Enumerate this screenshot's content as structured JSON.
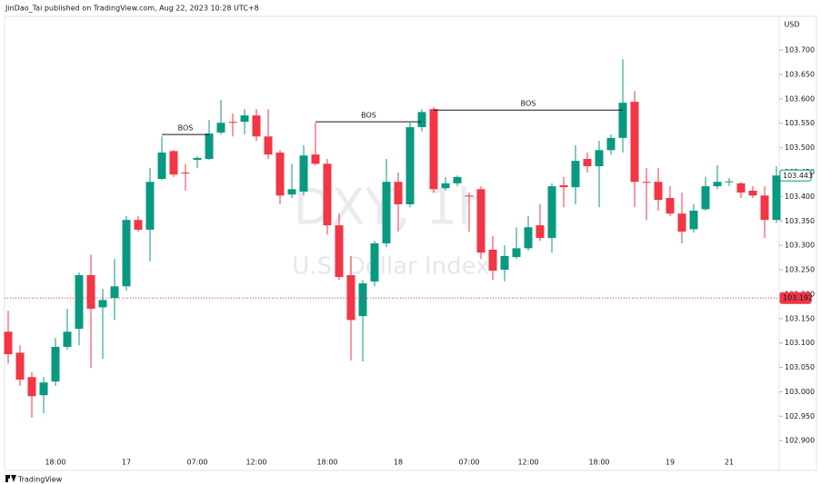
{
  "header": {
    "text": "JinDao_Tai published on TradingView.com, Aug 22, 2023 10:28 UTC+8"
  },
  "footer": {
    "brand": "TradingView"
  },
  "chart_data": {
    "type": "candlestick",
    "currency": "USD",
    "watermark": {
      "symbol": "DXY, 1h",
      "name": "U.S. Dollar Index"
    },
    "up_color": "#089981",
    "down_color": "#f23645",
    "categories": [
      null,
      null,
      null,
      null,
      "18:00",
      null,
      null,
      null,
      null,
      null,
      "17",
      null,
      null,
      null,
      null,
      null,
      "07:00",
      null,
      null,
      null,
      null,
      "12:00",
      null,
      null,
      null,
      null,
      null,
      "18:00",
      null,
      null,
      null,
      null,
      null,
      "18",
      null,
      null,
      null,
      null,
      null,
      "07:00",
      null,
      null,
      null,
      null,
      "12:00",
      null,
      null,
      null,
      null,
      null,
      "18:00",
      null,
      null,
      null,
      null,
      null,
      "19",
      null,
      null,
      null,
      null,
      "21",
      null,
      null,
      null,
      null
    ],
    "open": [
      103.123,
      103.08,
      103.03,
      102.993,
      103.021,
      103.092,
      103.129,
      103.239,
      103.173,
      103.192,
      103.216,
      103.352,
      103.332,
      103.436,
      103.493,
      103.449,
      103.475,
      103.477,
      103.531,
      103.553,
      103.553,
      103.566,
      103.523,
      103.49,
      103.404,
      103.41,
      103.486,
      103.467,
      103.341,
      103.239,
      103.155,
      103.226,
      103.304,
      103.43,
      103.384,
      103.542,
      103.579,
      103.417,
      103.427,
      103.402,
      103.415,
      103.291,
      103.25,
      103.276,
      103.294,
      103.341,
      103.315,
      103.423,
      103.419,
      103.477,
      103.462,
      103.495,
      103.52,
      103.594,
      103.43,
      103.43,
      103.397,
      103.365,
      103.333,
      103.374,
      103.421,
      103.43,
      103.427,
      103.412,
      103.402,
      103.352
    ],
    "high": [
      103.166,
      103.095,
      103.04,
      103.03,
      103.11,
      103.17,
      103.244,
      103.281,
      103.211,
      103.272,
      103.36,
      103.36,
      103.458,
      103.523,
      103.495,
      103.467,
      103.482,
      103.557,
      103.598,
      103.57,
      103.579,
      103.579,
      103.579,
      103.495,
      103.467,
      103.505,
      103.551,
      103.477,
      103.365,
      103.278,
      103.229,
      103.309,
      103.477,
      103.449,
      103.551,
      103.579,
      103.583,
      103.44,
      103.443,
      103.408,
      103.421,
      103.319,
      103.3,
      103.337,
      103.36,
      103.384,
      103.427,
      103.44,
      103.505,
      103.49,
      103.514,
      103.527,
      103.681,
      103.616,
      103.458,
      103.458,
      103.421,
      103.408,
      103.384,
      103.44,
      103.464,
      103.438,
      103.43,
      103.421,
      103.421,
      103.462
    ],
    "low": [
      103.058,
      103.012,
      102.947,
      102.956,
      103.012,
      103.086,
      103.095,
      103.049,
      103.067,
      103.147,
      103.207,
      103.328,
      103.267,
      103.434,
      103.44,
      103.412,
      103.458,
      103.475,
      103.527,
      103.523,
      103.527,
      103.514,
      103.477,
      103.384,
      103.397,
      103.402,
      103.464,
      103.322,
      103.229,
      103.064,
      103.062,
      103.216,
      103.296,
      103.328,
      103.378,
      103.533,
      103.408,
      103.412,
      103.421,
      103.328,
      103.272,
      103.229,
      103.226,
      103.272,
      103.289,
      103.309,
      103.285,
      103.378,
      103.384,
      103.449,
      103.378,
      103.486,
      103.49,
      103.378,
      103.352,
      103.371,
      103.36,
      103.304,
      103.326,
      103.371,
      103.415,
      103.421,
      103.397,
      103.397,
      103.315,
      103.346
    ],
    "close": [
      103.077,
      103.025,
      102.991,
      103.019,
      103.092,
      103.123,
      103.239,
      103.17,
      103.188,
      103.216,
      103.352,
      103.332,
      103.43,
      103.49,
      103.445,
      103.447,
      103.479,
      103.529,
      103.551,
      103.551,
      103.566,
      103.523,
      103.486,
      103.402,
      103.415,
      103.484,
      103.467,
      103.341,
      103.235,
      103.147,
      103.222,
      103.304,
      103.43,
      103.384,
      103.542,
      103.573,
      103.415,
      103.427,
      103.44,
      103.4,
      103.285,
      103.248,
      103.278,
      103.294,
      103.337,
      103.315,
      103.421,
      103.419,
      103.473,
      103.462,
      103.495,
      103.52,
      103.592,
      103.43,
      103.428,
      103.393,
      103.365,
      103.328,
      103.371,
      103.421,
      103.43,
      103.431,
      103.408,
      103.402,
      103.352,
      103.443
    ],
    "annotations": [
      {
        "text": "BOS",
        "value": 103.527,
        "from": 13,
        "to": 17
      },
      {
        "text": "BOS",
        "value": 103.553,
        "from": 26,
        "to": 35
      },
      {
        "text": "BOS",
        "value": 103.577,
        "from": 36,
        "to": 52
      }
    ],
    "price_lines": [
      {
        "value": 103.192,
        "color": "#f23645",
        "line": true
      },
      {
        "value": 103.443,
        "color": "#089981",
        "line": false
      }
    ],
    "ylim": [
      102.839,
      103.769
    ],
    "yticks": [
      {
        "value": 102.9,
        "label": "102.900"
      },
      {
        "value": 102.95,
        "label": "102.950"
      },
      {
        "value": 103,
        "label": "103.000"
      },
      {
        "value": 103.05,
        "label": "103.050"
      },
      {
        "value": 103.1,
        "label": "103.100"
      },
      {
        "value": 103.15,
        "label": "103.150"
      },
      {
        "value": 103.2,
        "label": "103.200"
      },
      {
        "value": 103.25,
        "label": "103.250"
      },
      {
        "value": 103.3,
        "label": "103.300"
      },
      {
        "value": 103.35,
        "label": "103.350"
      },
      {
        "value": 103.4,
        "label": "103.400"
      },
      {
        "value": 103.45,
        "label": "103.450"
      },
      {
        "value": 103.5,
        "label": "103.500"
      },
      {
        "value": 103.55,
        "label": "103.550"
      },
      {
        "value": 103.6,
        "label": "103.600"
      },
      {
        "value": 103.65,
        "label": "103.650"
      },
      {
        "value": 103.7,
        "label": "103.700"
      }
    ]
  }
}
